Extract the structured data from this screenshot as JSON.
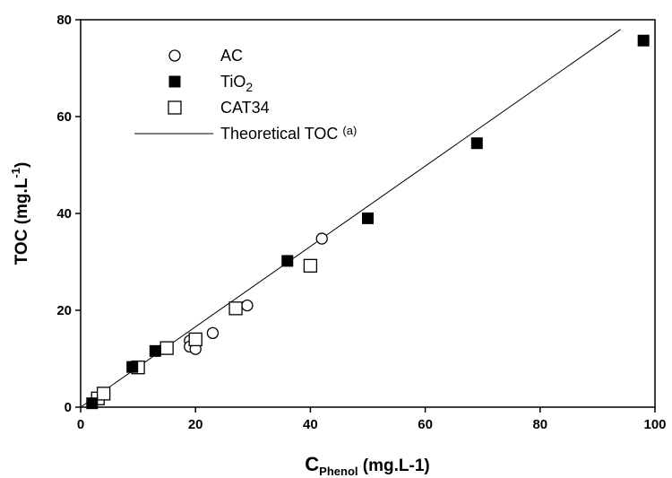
{
  "chart_data": {
    "type": "scatter",
    "xlabel": {
      "main": "C",
      "sub": "Phenol",
      "unit": " (mg.L-1)"
    },
    "ylabel": {
      "main": "TOC (mg.L",
      "sup": "-1",
      "close": ")"
    },
    "xlim": [
      0,
      100
    ],
    "ylim": [
      0,
      80
    ],
    "xticks": [
      0,
      20,
      40,
      60,
      80,
      100
    ],
    "yticks": [
      0,
      20,
      40,
      60,
      80
    ],
    "grid": false,
    "legend_position": "top-left",
    "series": [
      {
        "name": "AC",
        "marker": "circle-open",
        "points": [
          [
            19,
            13.7
          ],
          [
            19,
            12.5
          ],
          [
            20,
            13.0
          ],
          [
            20,
            12.0
          ],
          [
            23,
            15.3
          ],
          [
            29,
            21.0
          ],
          [
            42,
            34.8
          ]
        ]
      },
      {
        "name": "TiO2",
        "name_main": "TiO",
        "name_sub": "2",
        "marker": "square-filled",
        "points": [
          [
            2,
            0.8
          ],
          [
            9,
            8.3
          ],
          [
            13,
            11.6
          ],
          [
            36,
            30.2
          ],
          [
            50,
            39.0
          ],
          [
            69,
            54.5
          ],
          [
            98,
            75.7
          ]
        ]
      },
      {
        "name": "CAT34",
        "marker": "square-open",
        "points": [
          [
            3,
            1.8
          ],
          [
            4,
            2.8
          ],
          [
            10,
            8.2
          ],
          [
            15,
            12.2
          ],
          [
            20,
            14.0
          ],
          [
            27,
            20.4
          ],
          [
            40,
            29.2
          ]
        ]
      },
      {
        "name": "Theoretical TOC (a)",
        "name_main": "Theoretical TOC ",
        "name_sup": "(a)",
        "marker": "line",
        "points": [
          [
            0,
            0
          ],
          [
            94,
            78.0
          ]
        ]
      }
    ]
  }
}
